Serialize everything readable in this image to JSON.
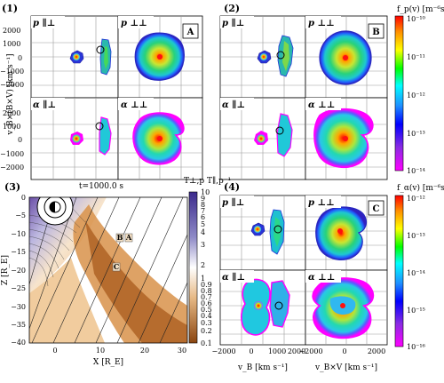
{
  "figure": {
    "panel_labels": [
      "(1)",
      "(2)",
      "(3)",
      "(4)"
    ],
    "groups": [
      {
        "id": "1",
        "letter": "A",
        "titles": [
          "p ∥⊥",
          "p ⊥⊥",
          "α ∥⊥",
          "α ⊥⊥"
        ]
      },
      {
        "id": "2",
        "letter": "B",
        "titles": [
          "p ∥⊥",
          "p ⊥⊥",
          "α ∥⊥",
          "α ⊥⊥"
        ]
      },
      {
        "id": "4",
        "letter": "C",
        "titles": [
          "p ∥⊥",
          "p ⊥⊥",
          "α ∥⊥",
          "α ⊥⊥"
        ]
      }
    ],
    "vdf_axes": {
      "ylabel": "v_B×(B×V) [km s⁻¹]",
      "xlabel_left": "v_B [km s⁻¹]",
      "xlabel_right": "v_B×V [km s⁻¹]",
      "yticks": [
        "2000",
        "1000",
        "0",
        "−1000",
        "−2000"
      ],
      "xticks": [
        "−2000",
        "0",
        "2000"
      ],
      "xticks_right": [
        "−2000",
        "0",
        "2000"
      ],
      "xticks_minor_label": "1000"
    },
    "colorbar_p": {
      "label": "f_p(v) [m⁻⁶s³]",
      "ticks": [
        "10⁻¹⁰",
        "10⁻¹¹",
        "10⁻¹²",
        "10⁻¹³",
        "10⁻¹⁴"
      ],
      "colors": [
        "#ff0000",
        "#ff8c00",
        "#ffff00",
        "#00ff00",
        "#00ffff",
        "#1e90ff",
        "#0000ff",
        "#8a2be2",
        "#ff00ff"
      ]
    },
    "colorbar_alpha": {
      "label": "f_α(v) [m⁻⁶s³]",
      "ticks": [
        "10⁻¹²",
        "10⁻¹³",
        "10⁻¹⁴",
        "10⁻¹⁵",
        "10⁻¹⁶"
      ]
    },
    "map": {
      "time_label": "t=1000.0 s",
      "xlabel": "X [R_E]",
      "ylabel": "Z [R_E]",
      "xticks": [
        "0",
        "10",
        "20",
        "30"
      ],
      "yticks": [
        "0",
        "−5",
        "−10",
        "−15",
        "−20",
        "−25",
        "−30",
        "−35",
        "−40"
      ],
      "point_labels": [
        "A",
        "B",
        "C"
      ],
      "colorbar_label": "T⊥,p T∥,p⁻¹",
      "colorbar_ticks": [
        "10",
        "9",
        "8",
        "7",
        "6",
        "5",
        "4",
        "3",
        "2",
        "1",
        "0.9",
        "0.8",
        "0.7",
        "0.6",
        "0.5",
        "0.4",
        "0.3",
        "0.2",
        "0.1"
      ],
      "colors": {
        "high": "#3b2a8c",
        "mid": "#ffffff",
        "low": "#b0601a"
      }
    }
  }
}
